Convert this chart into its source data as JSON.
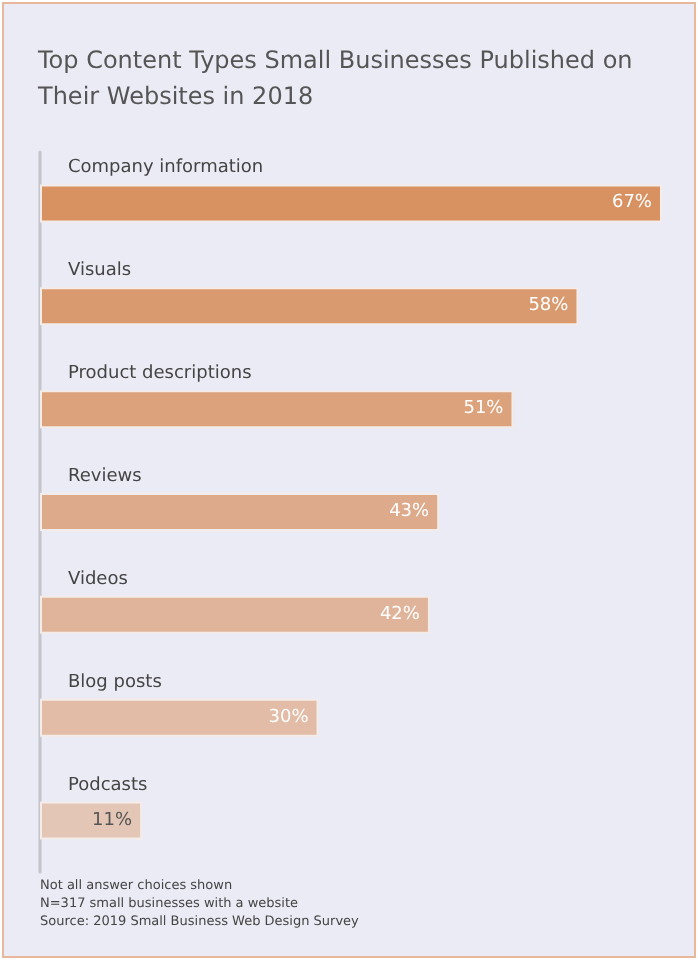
{
  "chart_data": {
    "type": "bar",
    "orientation": "horizontal",
    "title": "Top Content Types Small Businesses Published on Their Websites in 2018",
    "categories": [
      "Company information",
      "Visuals",
      "Product descriptions",
      "Reviews",
      "Videos",
      "Blog posts",
      "Podcasts"
    ],
    "values": [
      67,
      58,
      51,
      43,
      42,
      30,
      11
    ],
    "value_labels": [
      "67%",
      "58%",
      "51%",
      "43%",
      "42%",
      "30%",
      "11%"
    ],
    "colors": [
      "#d89160",
      "#da9a6f",
      "#dca27c",
      "#ddaa8c",
      "#e0b49a",
      "#e2bca6",
      "#e4c6b6"
    ],
    "annotations": [
      "Not all answer choices shown",
      "N=317 small businesses with a website",
      "Source: 2019 Small Business Web Design Survey"
    ]
  }
}
